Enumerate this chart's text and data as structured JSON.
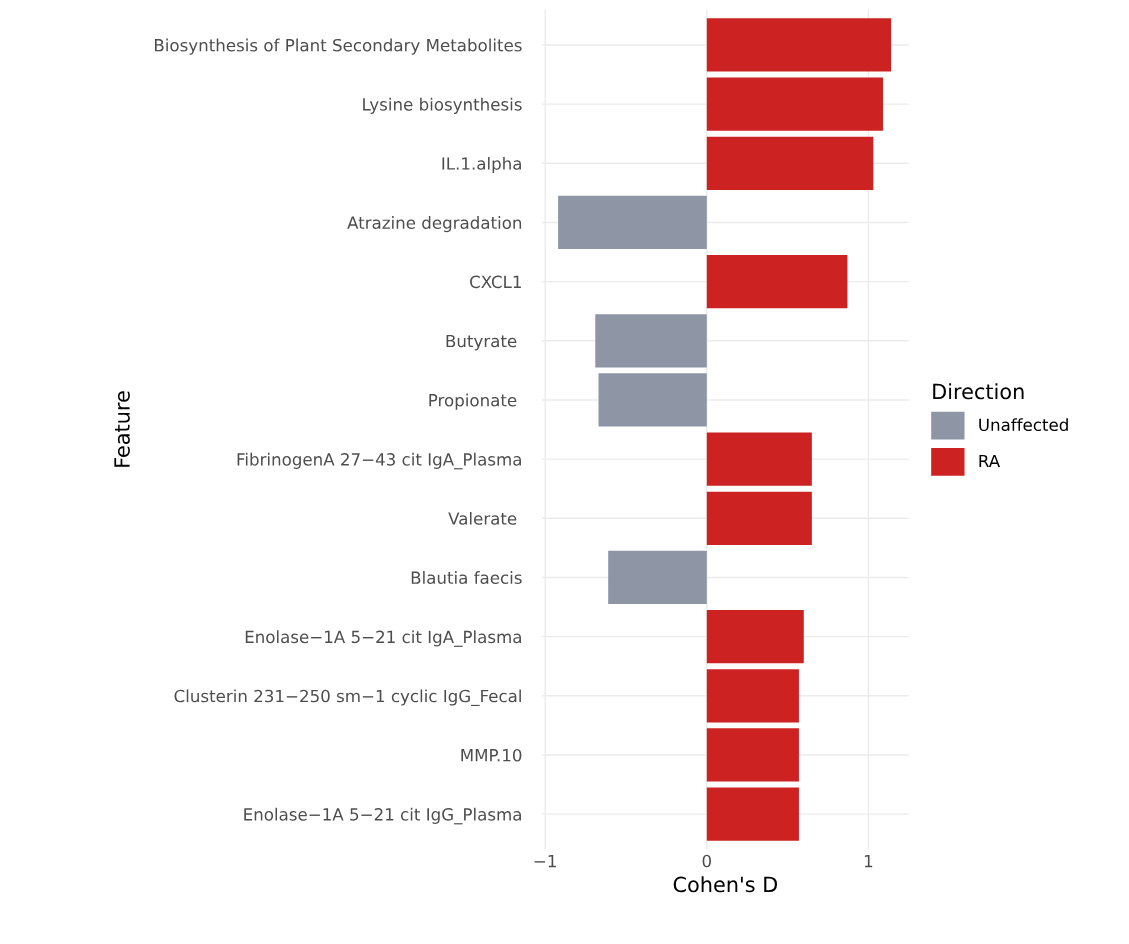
{
  "chart_data": {
    "type": "bar",
    "orientation": "horizontal",
    "xlabel": "Cohen's D",
    "ylabel": "Feature",
    "legend_title": "Direction",
    "legend": "right",
    "grid": true,
    "categories": [
      "Biosynthesis of Plant Secondary Metabolites",
      "Lysine biosynthesis",
      "IL.1.alpha",
      "Atrazine degradation",
      "CXCL1",
      "Butyrate ",
      "Propionate ",
      "FibrinogenA 27−43 cit IgA_Plasma",
      "Valerate ",
      "Blautia faecis",
      "Enolase−1A 5−21 cit IgA_Plasma",
      "Clusterin 231−250 sm−1 cyclic IgG_Fecal",
      "MMP.10",
      "Enolase−1A 5−21 cit IgG_Plasma"
    ],
    "series": [
      {
        "name": "Unaffected",
        "color": "#8e96a6",
        "values": [
          null,
          null,
          null,
          -0.92,
          null,
          -0.69,
          -0.67,
          null,
          null,
          -0.61,
          null,
          null,
          null,
          null
        ]
      },
      {
        "name": "RA",
        "color": "#cc2222",
        "values": [
          1.14,
          1.09,
          1.03,
          null,
          0.87,
          null,
          null,
          0.65,
          0.65,
          null,
          0.6,
          0.57,
          0.57,
          0.57
        ]
      }
    ],
    "xlim": [
      -1.02,
      1.25
    ],
    "xticks": [
      {
        "value": -1,
        "label": "−1"
      },
      0,
      1
    ]
  }
}
